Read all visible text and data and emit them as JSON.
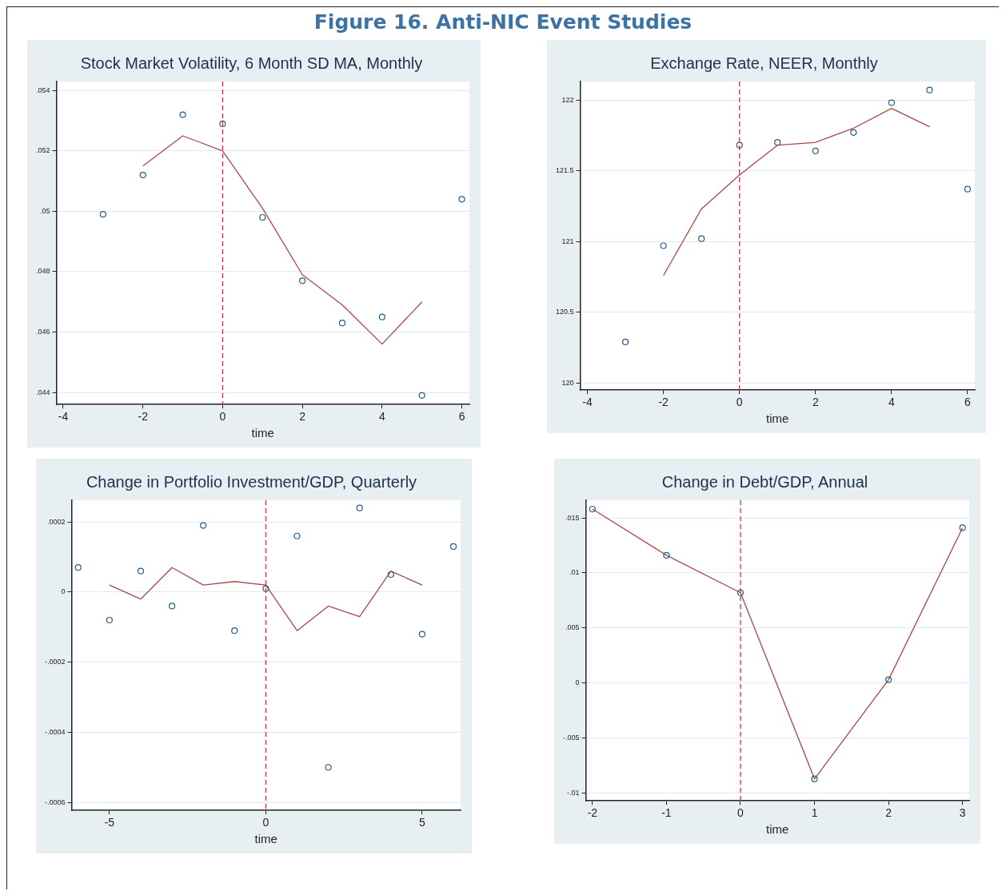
{
  "chart_data": [
    {
      "type": "scatter",
      "title": "Stock Market Volatility, 6 Month SD MA, Monthly",
      "xlabel": "time",
      "annotations": [
        "Figure 16. Anti-NIC Event Studies"
      ],
      "grid": "y",
      "xlim": [
        -4.17,
        6.19
      ],
      "xticks": [
        -4,
        -2,
        0,
        2,
        4,
        6
      ],
      "ylim": [
        0.0436,
        0.0543
      ],
      "yticks": [
        {
          "value": 0.044,
          "label": ".044"
        },
        {
          "value": 0.046,
          "label": ".046"
        },
        {
          "value": 0.048,
          "label": ".048"
        },
        {
          "value": 0.05,
          "label": ".05"
        },
        {
          "value": 0.052,
          "label": ".052"
        },
        {
          "value": 0.054,
          "label": ".054"
        }
      ],
      "ref_lines": [
        {
          "axis": "x",
          "value": 0,
          "color": "#d8304f",
          "line_style": "dashed"
        }
      ],
      "series": [
        {
          "type": "scatter",
          "marker": "circle",
          "color": "#2a5a8a",
          "x": [
            -3,
            -2,
            -1,
            0,
            1,
            2,
            3,
            4,
            5,
            6
          ],
          "values": [
            0.0499,
            0.0512,
            0.0532,
            0.0529,
            0.0498,
            0.0477,
            0.0463,
            0.0465,
            0.0439,
            0.0504
          ]
        },
        {
          "type": "line",
          "color": "#a84848",
          "x": [
            -2,
            -1,
            0,
            1,
            2,
            3,
            4,
            5
          ],
          "values": [
            0.0515,
            0.0525,
            0.052,
            0.0501,
            0.0479,
            0.0469,
            0.0456,
            0.047
          ]
        }
      ]
    },
    {
      "type": "scatter",
      "title": "Exchange Rate, NEER, Monthly",
      "xlabel": "time",
      "grid": "y",
      "xlim": [
        -4.19,
        6.19
      ],
      "xticks": [
        -4,
        -2,
        0,
        2,
        4,
        6
      ],
      "ylim": [
        119.95,
        122.13
      ],
      "yticks": [
        120,
        120.5,
        121,
        121.5,
        122
      ],
      "ref_lines": [
        {
          "axis": "x",
          "value": 0,
          "color": "#d8304f",
          "line_style": "dashed"
        }
      ],
      "series": [
        {
          "type": "scatter",
          "marker": "circle",
          "color": "#2a5a8a",
          "x": [
            -3,
            -2,
            -1,
            0,
            1,
            2,
            3,
            4,
            5,
            6
          ],
          "values": [
            120.29,
            120.97,
            121.02,
            121.68,
            121.7,
            121.64,
            121.77,
            121.98,
            122.07,
            121.37
          ]
        },
        {
          "type": "line",
          "color": "#a84848",
          "x": [
            -2,
            -1,
            0,
            1,
            2,
            3,
            4,
            5
          ],
          "values": [
            120.76,
            121.23,
            121.47,
            121.68,
            121.7,
            121.8,
            121.94,
            121.81
          ]
        }
      ]
    },
    {
      "type": "scatter",
      "title": "Change in Portfolio Investment/GDP, Quarterly",
      "xlabel": "time",
      "grid": "y",
      "xlim": [
        -6.21,
        6.23
      ],
      "xticks": [
        -5,
        0,
        5
      ],
      "ylim": [
        -0.000623,
        0.000262
      ],
      "yticks": [
        {
          "value": -0.0006,
          "label": "-.0006"
        },
        {
          "value": -0.0004,
          "label": "-.0004"
        },
        {
          "value": -0.0002,
          "label": "-.0002"
        },
        0,
        {
          "value": 0.0002,
          "label": ".0002"
        }
      ],
      "ref_lines": [
        {
          "axis": "x",
          "value": 0,
          "color": "#d8304f",
          "line_style": "dashed"
        }
      ],
      "series": [
        {
          "type": "scatter",
          "marker": "circle",
          "color": "#2a5a8a",
          "x": [
            -6,
            -5,
            -4,
            -3,
            -2,
            -1,
            0,
            1,
            2,
            3,
            4,
            5,
            6
          ],
          "values": [
            7e-05,
            -8e-05,
            6e-05,
            -4e-05,
            0.00019,
            -0.00011,
            1e-05,
            0.00016,
            -0.0005,
            0.00024,
            5e-05,
            -0.00012,
            0.00013
          ]
        },
        {
          "type": "line",
          "color": "#a84848",
          "x": [
            -5,
            -4,
            -3,
            -2,
            -1,
            0,
            1,
            2,
            3,
            4,
            5
          ],
          "values": [
            2e-05,
            -2e-05,
            7e-05,
            2e-05,
            3e-05,
            2e-05,
            -0.00011,
            -4e-05,
            -7e-05,
            6e-05,
            2e-05
          ]
        }
      ]
    },
    {
      "type": "scatter",
      "title": "Change in Debt/GDP, Annual",
      "xlabel": "time",
      "grid": "y",
      "xlim": [
        -2.09,
        3.09
      ],
      "xticks": [
        -2,
        -1,
        0,
        1,
        2,
        3
      ],
      "ylim": [
        -0.0107,
        0.0166
      ],
      "yticks": [
        {
          "value": -0.01,
          "label": "-.01"
        },
        {
          "value": -0.005,
          "label": "-.005"
        },
        0,
        {
          "value": 0.005,
          "label": ".005"
        },
        {
          "value": 0.01,
          "label": ".01"
        },
        {
          "value": 0.015,
          "label": ".015"
        }
      ],
      "ref_lines": [
        {
          "axis": "x",
          "value": 0,
          "color": "#d8304f",
          "line_style": "dashed"
        }
      ],
      "series": [
        {
          "type": "scatter",
          "marker": "circle",
          "color": "#2a5a8a",
          "x": [
            -2,
            -1,
            0,
            1,
            2,
            3
          ],
          "values": [
            0.0158,
            0.0116,
            0.0082,
            -0.0087,
            0.0003,
            0.0141
          ]
        },
        {
          "type": "line",
          "color": "#a84848",
          "x": [
            -2,
            -1,
            0,
            1,
            2,
            3
          ],
          "values": [
            0.0158,
            0.0116,
            0.0082,
            -0.0087,
            0.0003,
            0.0141
          ]
        }
      ]
    }
  ]
}
